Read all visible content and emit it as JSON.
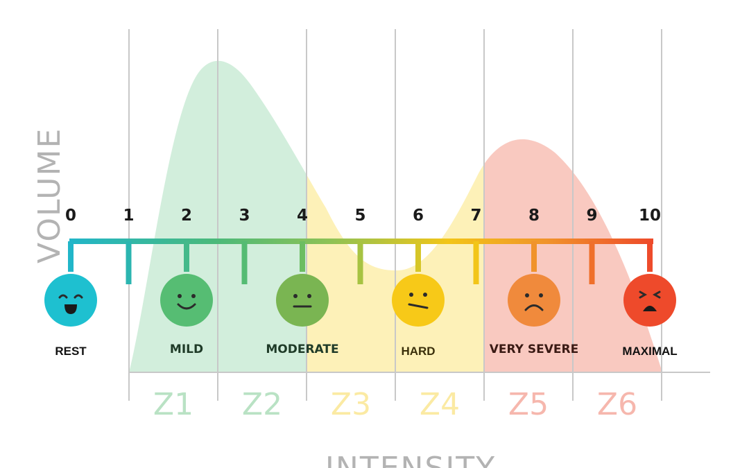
{
  "axes": {
    "y_title": "VOLUME",
    "x_title": "INTENSITY"
  },
  "scale": {
    "numbers": [
      "0",
      "1",
      "2",
      "3",
      "4",
      "5",
      "6",
      "7",
      "8",
      "9",
      "10"
    ],
    "gradient_colors": [
      "#21b6c9",
      "#4bb97a",
      "#8fc255",
      "#f2c518",
      "#f0932b",
      "#ee4b2b"
    ]
  },
  "effort_levels": [
    {
      "level": 0,
      "label": "REST",
      "color": "#1ec0d0",
      "face": "happy-face-icon"
    },
    {
      "level": 2,
      "label": "MILD",
      "color": "#56bd73",
      "face": "smile-face-icon"
    },
    {
      "level": 4,
      "label": "MODERATE",
      "color": "#7ab552",
      "face": "neutral-face-icon"
    },
    {
      "level": 6,
      "label": "HARD",
      "color": "#f7c918",
      "face": "uneasy-face-icon"
    },
    {
      "level": 8,
      "label": "VERY SEVERE",
      "color": "#f08a3c",
      "face": "frown-face-icon"
    },
    {
      "level": 10,
      "label": "MAXIMAL",
      "color": "#ee4a2b",
      "face": "distressed-face-icon"
    }
  ],
  "zones": [
    {
      "label": "Z1",
      "color": "#b9e2c4"
    },
    {
      "label": "Z2",
      "color": "#b9e2c4"
    },
    {
      "label": "Z3",
      "color": "#fbeaa3"
    },
    {
      "label": "Z4",
      "color": "#fbeaa3"
    },
    {
      "label": "Z5",
      "color": "#f6b7ad"
    },
    {
      "label": "Z6",
      "color": "#f6b7ad"
    }
  ],
  "area_colors": {
    "green": "#d2eedc",
    "yellow": "#fdf1b8",
    "red": "#f9c9c0"
  }
}
